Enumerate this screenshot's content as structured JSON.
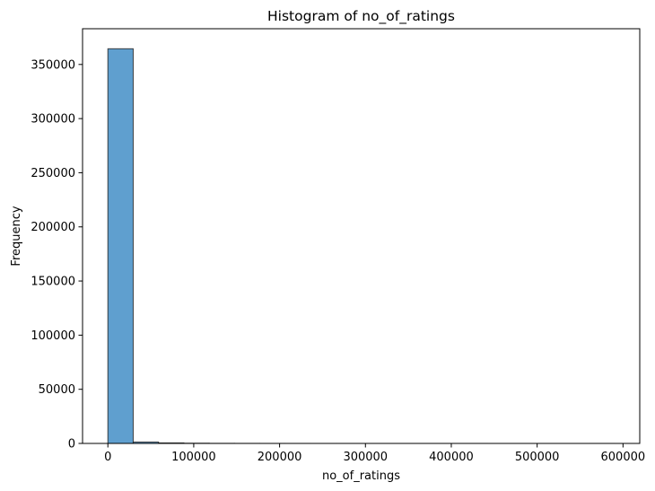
{
  "chart_data": {
    "type": "bar",
    "title": "Histogram of no_of_ratings",
    "xlabel": "no_of_ratings",
    "ylabel": "Frequency",
    "xlim": [
      -29500,
      619500
    ],
    "ylim": [
      0,
      383000
    ],
    "bin_edges": [
      0,
      29500,
      59000,
      88500,
      118000,
      147500,
      177000,
      206500,
      236000,
      265500,
      295000,
      324500,
      354000,
      383500,
      413000,
      442500,
      472000,
      501500,
      531000,
      560500,
      590000
    ],
    "counts": [
      364500,
      1300,
      500,
      200,
      80,
      40,
      20,
      10,
      5,
      3,
      2,
      1,
      1,
      1,
      1,
      0,
      0,
      0,
      0,
      1
    ],
    "x_ticks": [
      0,
      100000,
      200000,
      300000,
      400000,
      500000,
      600000
    ],
    "x_tick_labels": [
      "0",
      "100000",
      "200000",
      "300000",
      "400000",
      "500000",
      "600000"
    ],
    "y_ticks": [
      0,
      50000,
      100000,
      150000,
      200000,
      250000,
      300000,
      350000
    ],
    "y_tick_labels": [
      "0",
      "50000",
      "100000",
      "150000",
      "200000",
      "250000",
      "300000",
      "350000"
    ],
    "bar_color": "#5f9fcf",
    "edge_color": "#262626",
    "grid": false,
    "legend": "none"
  }
}
